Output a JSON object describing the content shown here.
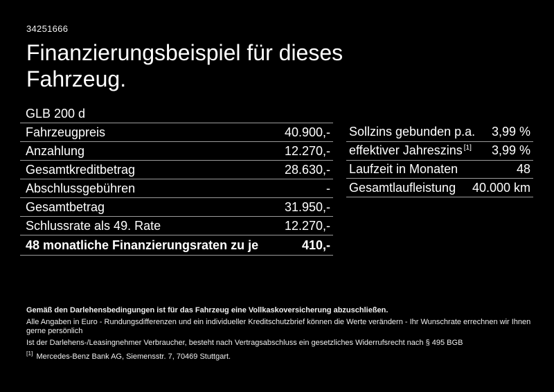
{
  "page": {
    "background": "#000000",
    "text_color": "#ffffff",
    "divider_color": "#9c9c9c"
  },
  "header": {
    "vehicle_id": "34251666",
    "title": "Finanzierungsbeispiel für dieses Fahrzeug."
  },
  "finance_table": {
    "model": "GLB 200 d",
    "rows": [
      {
        "label": "Fahrzeugpreis",
        "value": "40.900,-"
      },
      {
        "label": "Anzahlung",
        "value": "12.270,-"
      },
      {
        "label": "Gesamtkreditbetrag",
        "value": "28.630,-"
      },
      {
        "label": "Abschlussgebühren",
        "value": "-"
      },
      {
        "label": "Gesamtbetrag",
        "value": "31.950,-"
      },
      {
        "label": "Schlussrate als 49. Rate",
        "value": "12.270,-"
      },
      {
        "label": "48 monatliche Finanzierungsraten zu je",
        "value": "410,-"
      }
    ]
  },
  "conditions_table": {
    "rows": [
      {
        "label": "Sollzins gebunden p.a.",
        "marker": "",
        "value": "3,99 %"
      },
      {
        "label": "effektiver Jahreszins",
        "marker": "[1]",
        "value": "3,99 %"
      },
      {
        "label": "Laufzeit in Monaten",
        "marker": "",
        "value": "48"
      },
      {
        "label": "Gesamtlaufleistung",
        "marker": "",
        "value": "40.000 km"
      }
    ]
  },
  "fine_print": {
    "line1": "Gemäß den Darlehensbedingungen ist für das Fahrzeug eine Vollkaskoversicherung abzuschließen.",
    "line2": "Alle Angaben in Euro - Rundungsdifferenzen und ein individueller Kreditschutzbrief können die Werte verändern - Ihr Wunschrate errechnen wir Ihnen gerne persönlich",
    "line3": "Ist der Darlehens-/Leasingnehmer Verbraucher, besteht nach Vertragsabschluss ein gesetzliches Widerrufsrecht nach § 495 BGB",
    "footnote_marker": "[1]",
    "footnote_text": "Mercedes-Benz Bank AG, Siemensstr. 7, 70469 Stuttgart."
  }
}
